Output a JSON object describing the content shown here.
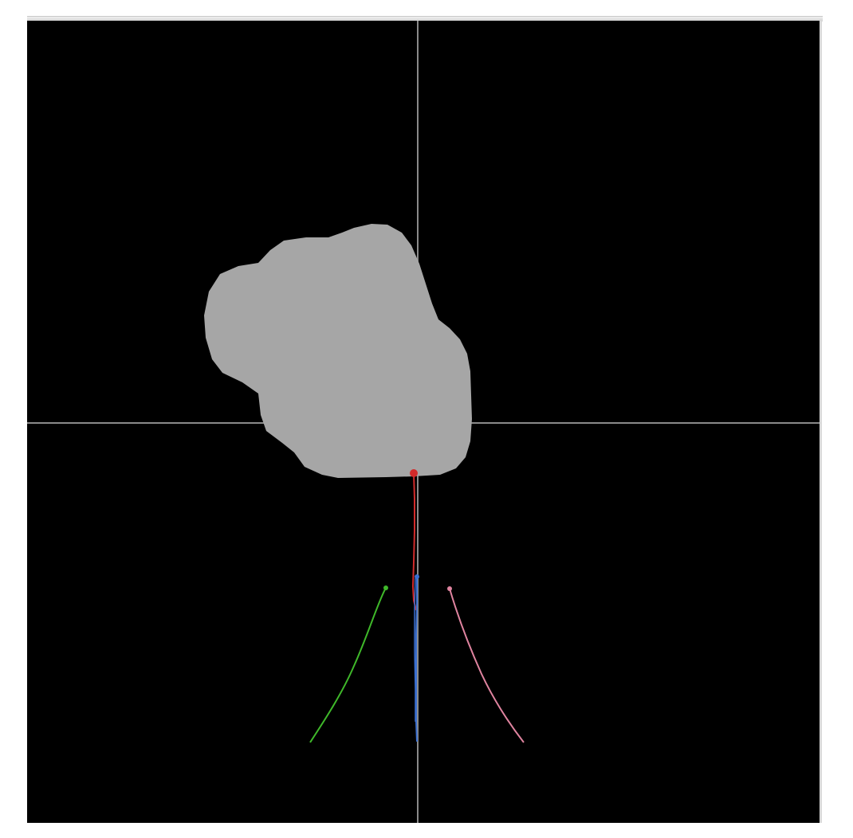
{
  "viewport": {
    "background_color": "#000000",
    "crosshair_color": "#8a8a8a",
    "obstacle": {
      "name": "gray-blob-obstacle",
      "color": "#a6a6a6"
    },
    "trajectories": [
      {
        "name": "red-trajectory",
        "color": "#d22b2b"
      },
      {
        "name": "blue-trajectory",
        "color": "#3a6fd0"
      },
      {
        "name": "green-trajectory",
        "color": "#3fb82a"
      },
      {
        "name": "pink-trajectory",
        "color": "#e084a0"
      }
    ]
  }
}
